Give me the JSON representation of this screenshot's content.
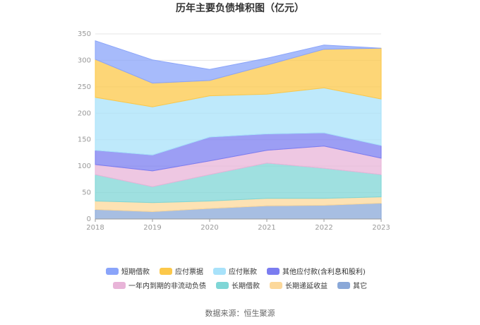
{
  "chart_data": {
    "type": "area",
    "stacked": true,
    "title": "历年主要负债堆积图（亿元）",
    "x": [
      "2018",
      "2019",
      "2020",
      "2021",
      "2022",
      "2023"
    ],
    "ylim": [
      0,
      350
    ],
    "yticks": [
      "0",
      "50",
      "100",
      "150",
      "200",
      "250",
      "300",
      "350"
    ],
    "grid": true,
    "legend_position": "bottom",
    "series": [
      {
        "name": "其它",
        "color": "#8aa8d8",
        "values": [
          18,
          14,
          20,
          25,
          26,
          30
        ]
      },
      {
        "name": "长期递延收益",
        "color": "#fcd89a",
        "values": [
          16,
          17,
          14,
          14,
          13,
          12
        ]
      },
      {
        "name": "长期借款",
        "color": "#7fd6d6",
        "values": [
          50,
          30,
          50,
          67,
          57,
          42
        ]
      },
      {
        "name": "一年内到期的非流动负债",
        "color": "#e8b4d8",
        "values": [
          19,
          30,
          26,
          24,
          42,
          31
        ]
      },
      {
        "name": "其他应付款(含利息和股利)",
        "color": "#7b7df0",
        "values": [
          27,
          30,
          45,
          31,
          25,
          24
        ]
      },
      {
        "name": "应付账款",
        "color": "#a8e2fa",
        "values": [
          100,
          91,
          78,
          75,
          85,
          88
        ]
      },
      {
        "name": "应付票据",
        "color": "#fcc84a",
        "values": [
          72,
          45,
          29,
          55,
          73,
          96
        ]
      },
      {
        "name": "短期借款",
        "color": "#8aa4fa",
        "values": [
          35,
          44,
          21,
          13,
          8,
          0
        ]
      }
    ],
    "legend_order": [
      "短期借款",
      "应付票据",
      "应付账款",
      "其他应付款(含利息和股利)",
      "一年内到期的非流动负债",
      "长期借款",
      "长期递延收益",
      "其它"
    ]
  },
  "footer": {
    "source": "数据来源：恒生聚源"
  }
}
